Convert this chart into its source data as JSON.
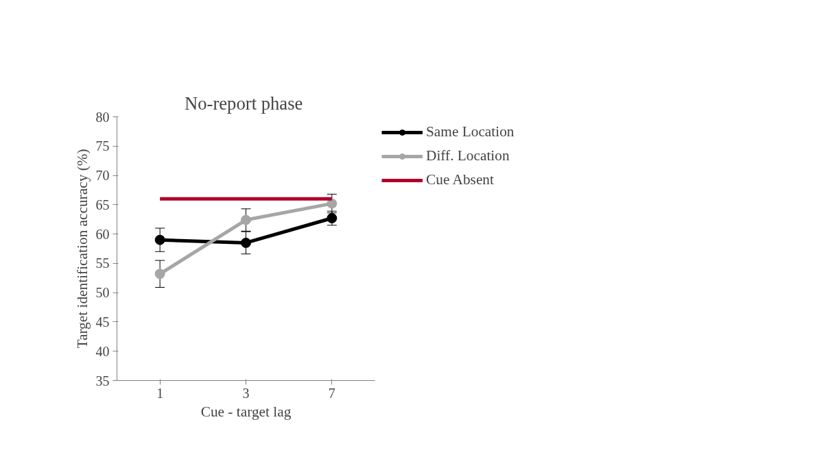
{
  "chart_data": {
    "type": "line",
    "title": "No-report  phase",
    "xlabel": "Cue - target lag",
    "ylabel": "Target identification accuracy (%)",
    "categories": [
      "1",
      "3",
      "7"
    ],
    "series": [
      {
        "name": "Same Location",
        "color": "#000000",
        "values": [
          59.0,
          58.5,
          62.7
        ],
        "errors": [
          2.0,
          1.9,
          1.2
        ],
        "marker": "circle"
      },
      {
        "name": "Diff. Location",
        "color": "#a6a6a6",
        "values": [
          53.2,
          62.4,
          65.2
        ],
        "errors": [
          2.3,
          1.9,
          1.6
        ],
        "marker": "circle"
      },
      {
        "name": "Cue Absent",
        "color": "#b0002a",
        "values": [
          66,
          66,
          66
        ],
        "marker": "none"
      }
    ],
    "ylim": [
      35,
      80
    ],
    "yticks": [
      35,
      40,
      45,
      50,
      55,
      60,
      65,
      70,
      75,
      80
    ],
    "grid": false,
    "legend": "top right"
  }
}
